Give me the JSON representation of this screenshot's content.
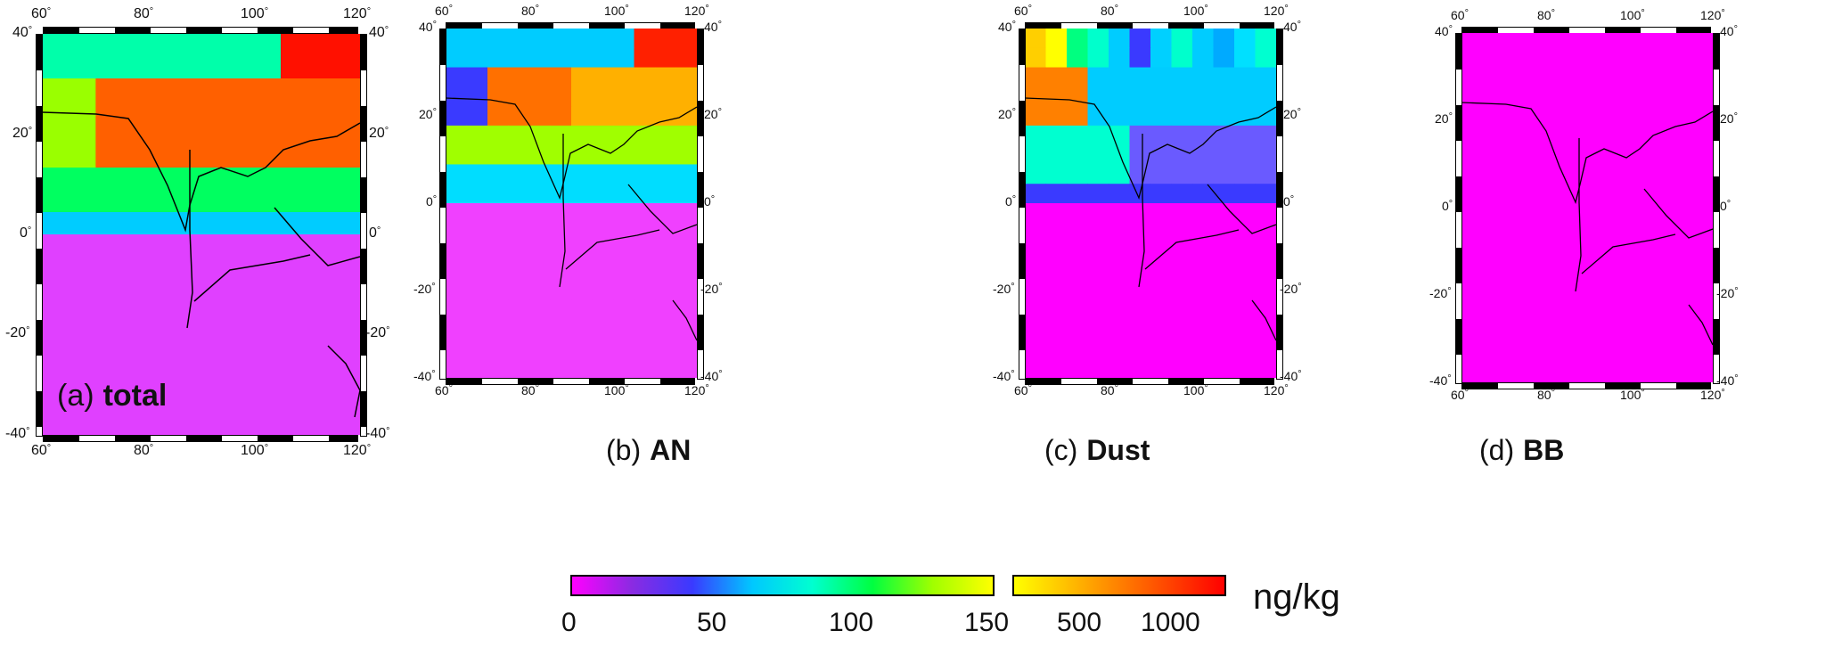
{
  "panels": [
    {
      "id": "a",
      "letter": "(a)",
      "name": "total"
    },
    {
      "id": "b",
      "letter": "(b)",
      "name": "AN"
    },
    {
      "id": "c",
      "letter": "(c)",
      "name": "Dust"
    },
    {
      "id": "d",
      "letter": "(d)",
      "name": "BB"
    }
  ],
  "axes": {
    "lon_ticks": [
      "60",
      "80",
      "100",
      "120"
    ],
    "lat_ticks": [
      "40",
      "20",
      "0",
      "-20",
      "-40"
    ],
    "degree_symbol": "°"
  },
  "colorbar": {
    "linear_ticks": [
      "0",
      "50",
      "100",
      "150"
    ],
    "log_ticks": [
      "500",
      "1000"
    ],
    "unit": "ng/kg",
    "linear_colors": [
      "#ff00ff",
      "#8a2be2",
      "#3a3aff",
      "#00c8ff",
      "#00ffd0",
      "#00ff40",
      "#a0ff00",
      "#ffff00"
    ],
    "high_colors": [
      "#ffff00",
      "#ffc000",
      "#ff8000",
      "#ff4000",
      "#ff0000"
    ]
  },
  "fields": {
    "total": {
      "north_mid": "#ff6a00",
      "south": "#e040ff"
    },
    "AN": {
      "north_mid": "#ff9a00",
      "south": "#f040ff"
    },
    "Dust": {
      "north_mid": "#00d8ff",
      "south": "#ff00ff"
    },
    "BB": {
      "north_mid": "#ff00ff",
      "south": "#ff00ff"
    }
  }
}
